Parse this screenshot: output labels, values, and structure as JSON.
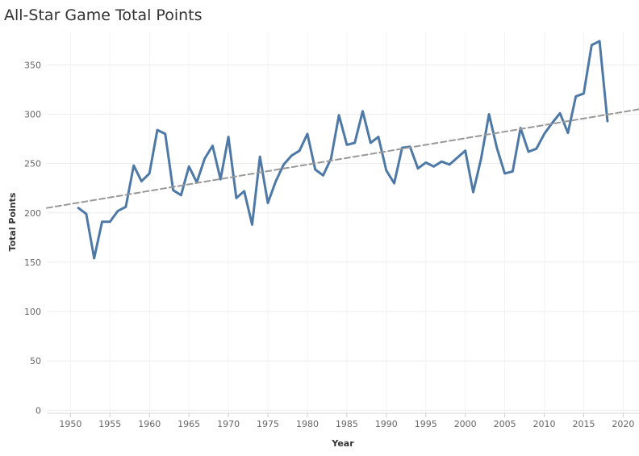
{
  "chart_data": {
    "type": "line",
    "title": "All-Star Game Total Points",
    "xlabel": "Year",
    "ylabel": "Total Points",
    "xlim": [
      1947,
      2022
    ],
    "ylim": [
      -3,
      383
    ],
    "x_ticks": [
      1950,
      1955,
      1960,
      1965,
      1970,
      1975,
      1980,
      1985,
      1990,
      1995,
      2000,
      2005,
      2010,
      2015,
      2020
    ],
    "y_ticks": [
      0,
      50,
      100,
      150,
      200,
      250,
      300,
      350
    ],
    "grid": true,
    "series": [
      {
        "color": "#4e79a7",
        "x": [
          1951,
          1952,
          1953,
          1954,
          1955,
          1956,
          1957,
          1958,
          1959,
          1960,
          1961,
          1962,
          1963,
          1964,
          1965,
          1966,
          1967,
          1968,
          1969,
          1970,
          1971,
          1972,
          1973,
          1974,
          1975,
          1976,
          1977,
          1978,
          1979,
          1980,
          1981,
          1982,
          1983,
          1984,
          1985,
          1986,
          1987,
          1988,
          1989,
          1990,
          1991,
          1992,
          1993,
          1994,
          1995,
          1996,
          1997,
          1998,
          2000,
          2001,
          2002,
          2003,
          2004,
          2005,
          2006,
          2007,
          2008,
          2009,
          2010,
          2011,
          2012,
          2013,
          2014,
          2015,
          2016,
          2017,
          2018
        ],
        "y": [
          205,
          199,
          154,
          191,
          191,
          202,
          206,
          248,
          232,
          240,
          284,
          280,
          223,
          218,
          247,
          231,
          255,
          268,
          234,
          277,
          215,
          222,
          188,
          257,
          210,
          232,
          249,
          258,
          263,
          280,
          244,
          238,
          255,
          299,
          269,
          271,
          303,
          271,
          277,
          243,
          230,
          266,
          267,
          245,
          251,
          247,
          252,
          249,
          263,
          221,
          255,
          300,
          266,
          240,
          242,
          286,
          262,
          265,
          280,
          291,
          301,
          281,
          318,
          321,
          370,
          374,
          293
        ]
      },
      {
        "name": "",
        "kind": "trend",
        "color": "#999999",
        "x": [
          1947,
          2022
        ],
        "y": [
          205,
          305
        ]
      }
    ]
  }
}
